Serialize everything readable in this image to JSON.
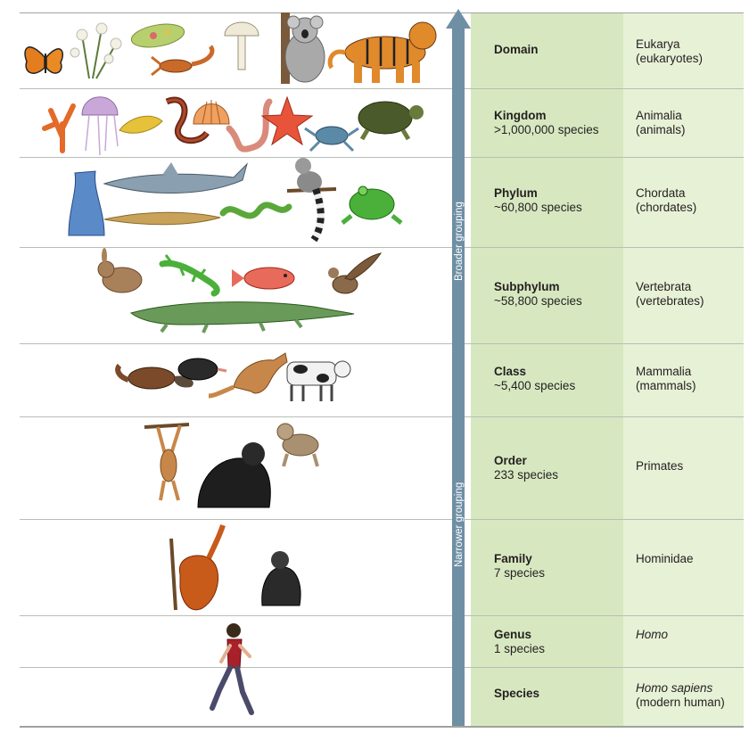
{
  "arrow": {
    "broader_label": "Broader grouping",
    "narrower_label": "Narrower grouping",
    "color": "#6f8fa4"
  },
  "colors": {
    "rank_column": "#d7e8c0",
    "name_column": "#e7f1d6"
  },
  "levels": [
    {
      "rank": "Domain",
      "count": "",
      "name_line1": "Eukarya",
      "name_line2": "(eukaryotes)",
      "italic": false
    },
    {
      "rank": "Kingdom",
      "count": ">1,000,000 species",
      "name_line1": "Animalia",
      "name_line2": "(animals)",
      "italic": false
    },
    {
      "rank": "Phylum",
      "count": "~60,800 species",
      "name_line1": "Chordata",
      "name_line2": "(chordates)",
      "italic": false
    },
    {
      "rank": "Subphylum",
      "count": "~58,800 species",
      "name_line1": "Vertebrata",
      "name_line2": "(vertebrates)",
      "italic": false
    },
    {
      "rank": "Class",
      "count": "~5,400 species",
      "name_line1": "Mammalia",
      "name_line2": "(mammals)",
      "italic": false
    },
    {
      "rank": "Order",
      "count": "233 species",
      "name_line1": "Primates",
      "name_line2": "",
      "italic": false
    },
    {
      "rank": "Family",
      "count": "7 species",
      "name_line1": "Hominidae",
      "name_line2": "",
      "italic": false
    },
    {
      "rank": "Genus",
      "count": "1 species",
      "name_line1": "Homo",
      "name_line2": "",
      "italic": true
    },
    {
      "rank": "Species",
      "count": "",
      "name_line1": "Homo sapiens",
      "name_line2": "(modern human)",
      "italic": true
    }
  ],
  "illustrations": [
    [
      "butterfly-icon",
      "flower-plant-icon",
      "paramecium-icon",
      "scorpion-icon",
      "mushroom-icon",
      "koala-icon",
      "tiger-icon"
    ],
    [
      "coral-icon",
      "jellyfish-icon",
      "flatworm-icon",
      "cobra-icon",
      "scallop-icon",
      "earthworm-icon",
      "starfish-icon",
      "crab-icon",
      "turtle-icon"
    ],
    [
      "tunicate-icon",
      "shark-icon",
      "lancelet-icon",
      "snake-icon",
      "lemur-icon",
      "frog-icon"
    ],
    [
      "rabbit-icon",
      "lizard-icon",
      "fish-icon",
      "hawk-icon",
      "crocodile-icon"
    ],
    [
      "platypus-icon",
      "mole-icon",
      "kangaroo-icon",
      "cow-icon"
    ],
    [
      "gibbon-icon",
      "gorilla-icon",
      "baboon-icon"
    ],
    [
      "orangutan-icon",
      "chimpanzee-icon"
    ],
    [
      "human-runner-icon"
    ]
  ]
}
